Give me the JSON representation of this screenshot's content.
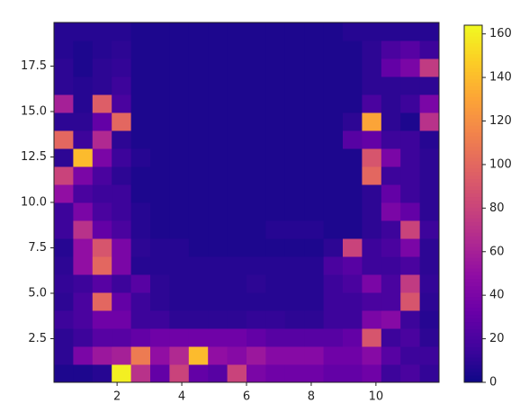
{
  "chart_data": {
    "type": "heatmap",
    "colormap": "plasma",
    "xlim": [
      0.05,
      11.95
    ],
    "ylim": [
      0.1,
      19.9
    ],
    "xticks": [
      2,
      4,
      6,
      8,
      10
    ],
    "yticks": [
      2.5,
      {
        "value": 5,
        "label": "5.0"
      },
      7.5,
      {
        "value": 10,
        "label": "10.0"
      },
      12.5,
      {
        "value": 15,
        "label": "15.0"
      },
      17.5
    ],
    "clim": [
      0,
      164
    ],
    "cticks": [
      0,
      20,
      40,
      60,
      80,
      100,
      120,
      140,
      160
    ],
    "values": [
      [
        5,
        5,
        8,
        160,
        70,
        30,
        80,
        30,
        25,
        80,
        40,
        35,
        35,
        35,
        30,
        30,
        35,
        15,
        20,
        12
      ],
      [
        10,
        40,
        55,
        60,
        110,
        50,
        65,
        140,
        50,
        45,
        55,
        45,
        45,
        45,
        35,
        35,
        45,
        25,
        15,
        15
      ],
      [
        10,
        15,
        25,
        25,
        30,
        35,
        35,
        35,
        35,
        35,
        30,
        25,
        25,
        25,
        25,
        30,
        90,
        15,
        20,
        10
      ],
      [
        15,
        20,
        35,
        35,
        15,
        15,
        10,
        10,
        10,
        10,
        12,
        12,
        10,
        10,
        15,
        15,
        40,
        45,
        15,
        8
      ],
      [
        10,
        20,
        100,
        30,
        15,
        10,
        8,
        8,
        8,
        8,
        8,
        8,
        8,
        8,
        15,
        15,
        20,
        20,
        90,
        10
      ],
      [
        12,
        15,
        25,
        15,
        25,
        10,
        8,
        8,
        8,
        8,
        10,
        8,
        8,
        8,
        15,
        20,
        40,
        20,
        75,
        12
      ],
      [
        10,
        50,
        100,
        40,
        8,
        8,
        8,
        8,
        8,
        8,
        8,
        8,
        8,
        8,
        20,
        25,
        15,
        15,
        20,
        10
      ],
      [
        8,
        50,
        90,
        40,
        10,
        8,
        8,
        5,
        5,
        5,
        5,
        5,
        5,
        5,
        10,
        80,
        15,
        20,
        40,
        10
      ],
      [
        15,
        70,
        30,
        20,
        8,
        5,
        5,
        5,
        5,
        5,
        5,
        8,
        8,
        8,
        5,
        5,
        10,
        15,
        80,
        15
      ],
      [
        15,
        40,
        20,
        15,
        8,
        5,
        5,
        5,
        5,
        5,
        5,
        5,
        5,
        5,
        5,
        5,
        10,
        40,
        30,
        10
      ],
      [
        50,
        20,
        15,
        15,
        5,
        5,
        5,
        5,
        5,
        5,
        5,
        5,
        5,
        5,
        5,
        5,
        10,
        30,
        15,
        10
      ],
      [
        80,
        40,
        20,
        10,
        5,
        5,
        5,
        5,
        5,
        5,
        5,
        5,
        5,
        5,
        5,
        5,
        100,
        15,
        15,
        10
      ],
      [
        10,
        140,
        40,
        15,
        8,
        5,
        5,
        5,
        5,
        5,
        5,
        5,
        5,
        5,
        5,
        5,
        90,
        40,
        15,
        10
      ],
      [
        100,
        15,
        65,
        10,
        5,
        5,
        5,
        5,
        5,
        5,
        5,
        5,
        5,
        5,
        5,
        25,
        30,
        15,
        15,
        8
      ],
      [
        10,
        10,
        30,
        100,
        5,
        5,
        5,
        5,
        5,
        5,
        5,
        5,
        5,
        5,
        5,
        10,
        130,
        10,
        5,
        70
      ],
      [
        60,
        8,
        95,
        20,
        5,
        5,
        5,
        5,
        5,
        5,
        5,
        5,
        5,
        5,
        5,
        5,
        20,
        10,
        15,
        40
      ],
      [
        10,
        8,
        10,
        15,
        5,
        5,
        5,
        5,
        5,
        5,
        5,
        5,
        5,
        5,
        5,
        5,
        10,
        10,
        10,
        10
      ],
      [
        10,
        5,
        10,
        12,
        5,
        5,
        5,
        5,
        5,
        5,
        5,
        5,
        5,
        5,
        5,
        5,
        10,
        30,
        40,
        75
      ],
      [
        8,
        5,
        8,
        10,
        5,
        5,
        5,
        5,
        5,
        5,
        5,
        5,
        5,
        5,
        5,
        5,
        10,
        20,
        25,
        15
      ],
      [
        8,
        8,
        8,
        8,
        5,
        5,
        5,
        5,
        5,
        5,
        5,
        5,
        5,
        5,
        5,
        8,
        8,
        8,
        8,
        8
      ]
    ]
  }
}
